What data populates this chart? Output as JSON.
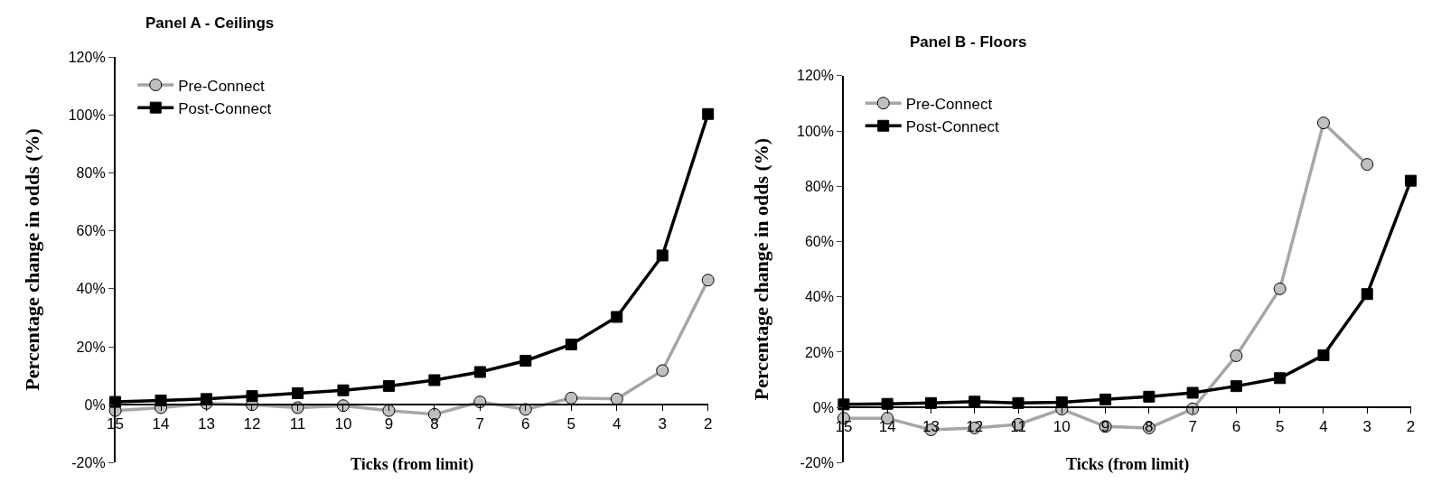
{
  "chart_data": [
    {
      "type": "line",
      "title": "Panel A - Ceilings",
      "xlabel": "Ticks (from limit)",
      "ylabel": "Percentage change in odds (%)",
      "categories": [
        "15",
        "14",
        "13",
        "12",
        "11",
        "10",
        "9",
        "8",
        "7",
        "6",
        "5",
        "4",
        "3",
        "2"
      ],
      "series": [
        {
          "name": "Pre-Connect",
          "color": "#a6a6a6",
          "marker": "circle",
          "values": [
            -2,
            -1,
            0.5,
            0,
            -1,
            -0.3,
            -2,
            -3.3,
            1,
            -1.6,
            2.3,
            2,
            11.8,
            43
          ]
        },
        {
          "name": "Post-Connect",
          "color": "#000000",
          "marker": "square",
          "values": [
            1,
            1.5,
            2,
            3,
            4,
            5,
            6.5,
            8.5,
            11.3,
            15.2,
            20.8,
            30.3,
            51.5,
            100.3
          ]
        }
      ],
      "ylim": [
        -20,
        120
      ],
      "yticks": [
        {
          "value": -20,
          "label": "-20%"
        },
        {
          "value": 0,
          "label": "0%"
        },
        {
          "value": 20,
          "label": "20%"
        },
        {
          "value": 40,
          "label": "40%"
        },
        {
          "value": 60,
          "label": "60%"
        },
        {
          "value": 80,
          "label": "80%"
        },
        {
          "value": 100,
          "label": "100%"
        },
        {
          "value": 120,
          "label": "120%"
        }
      ],
      "grid": false,
      "legend": "top left",
      "line_style": "solid"
    },
    {
      "type": "line",
      "title": "Panel B - Floors",
      "xlabel": "Ticks (from limit)",
      "ylabel": "Percentage change in odds (%)",
      "categories": [
        "15",
        "14",
        "13",
        "12",
        "11",
        "10",
        "9",
        "8",
        "7",
        "6",
        "5",
        "4",
        "3",
        "2"
      ],
      "series": [
        {
          "name": "Pre-Connect",
          "color": "#a6a6a6",
          "marker": "circle",
          "values": [
            -3.9,
            -3.9,
            -8.1,
            -7.4,
            -6.1,
            -0.6,
            -6.9,
            -7.4,
            -0.5,
            18.7,
            42.9,
            102.9,
            87.9,
            null
          ]
        },
        {
          "name": "Post-Connect",
          "color": "#000000",
          "marker": "square",
          "values": [
            1.1,
            1.3,
            1.6,
            2.1,
            1.6,
            1.9,
            2.9,
            3.9,
            5.3,
            7.7,
            10.6,
            18.9,
            41,
            82
          ]
        }
      ],
      "ylim": [
        -20,
        120
      ],
      "yticks": [
        {
          "value": -20,
          "label": "-20%"
        },
        {
          "value": 0,
          "label": "0%"
        },
        {
          "value": 20,
          "label": "20%"
        },
        {
          "value": 40,
          "label": "40%"
        },
        {
          "value": 60,
          "label": "60%"
        },
        {
          "value": 80,
          "label": "80%"
        },
        {
          "value": 100,
          "label": "100%"
        },
        {
          "value": 120,
          "label": "120%"
        }
      ],
      "grid": false,
      "legend": "top left",
      "line_style": "solid"
    }
  ]
}
